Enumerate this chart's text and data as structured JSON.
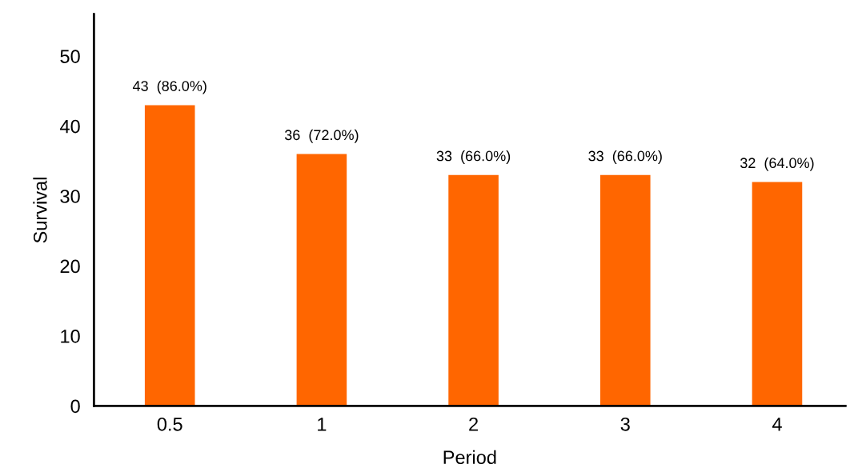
{
  "chart_data": {
    "type": "bar",
    "xlabel": "Period",
    "ylabel": "Survival",
    "categories": [
      "0.5",
      "1",
      "2",
      "3",
      "4"
    ],
    "values": [
      43,
      36,
      33,
      33,
      32
    ],
    "value_labels": [
      "43  (86.0%)",
      "36  (72.0%)",
      "33  (66.0%)",
      "33  (66.0%)",
      "32  (64.0%)"
    ],
    "color": "#ff6600",
    "ylim": [
      0,
      56
    ],
    "yticks": [
      0,
      10,
      20,
      30,
      40,
      50
    ],
    "grid": false
  }
}
